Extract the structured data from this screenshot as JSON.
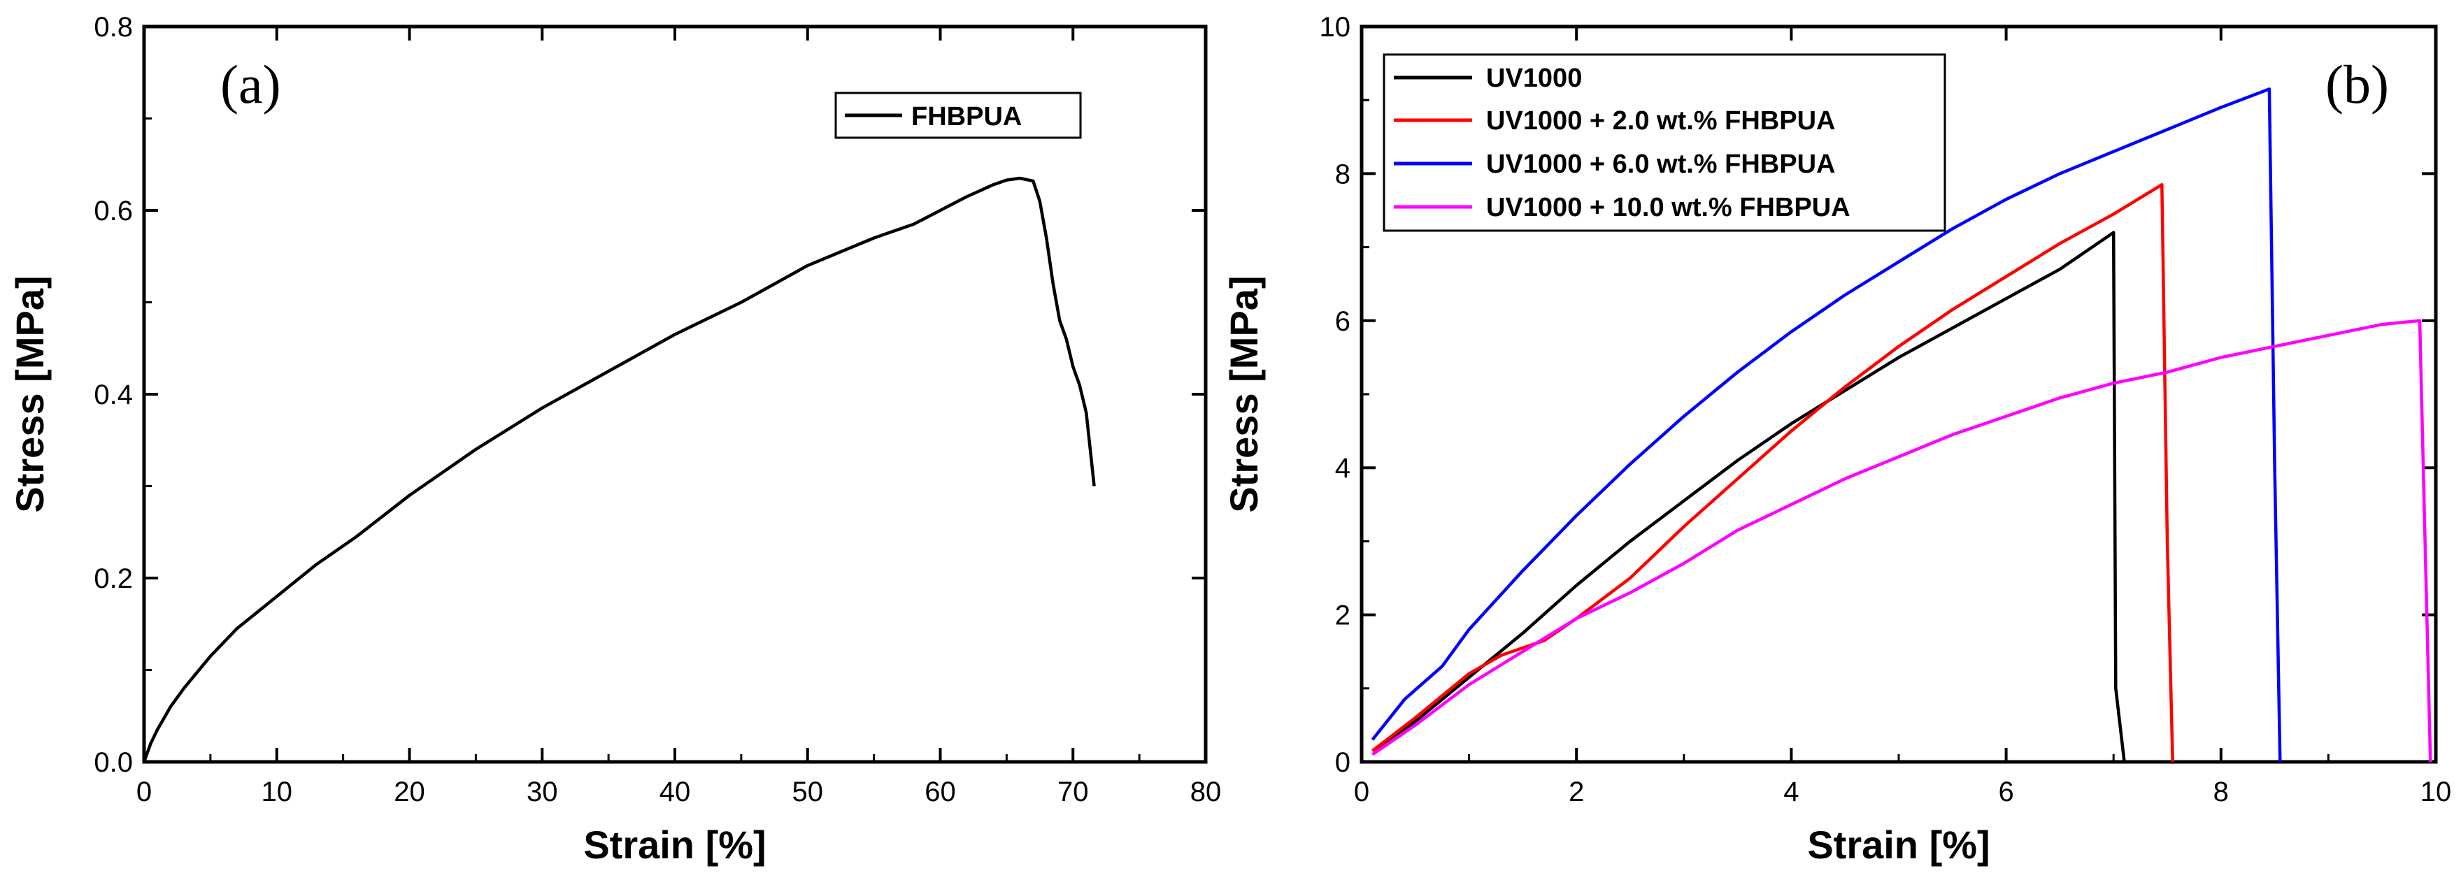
{
  "chart_data": [
    {
      "type": "line",
      "panel_label": "(a)",
      "xlabel": "Strain  [%]",
      "ylabel": "Stress  [MPa]",
      "xlim": [
        0,
        80
      ],
      "ylim": [
        0,
        0.8
      ],
      "xticks": [
        0,
        10,
        20,
        30,
        40,
        50,
        60,
        70,
        80
      ],
      "yticks": [
        0.0,
        0.2,
        0.4,
        0.6,
        0.8
      ],
      "ytick_labels": [
        "0.0",
        "0.2",
        "0.4",
        "0.6",
        "0.8"
      ],
      "legend_position": "top-right",
      "series": [
        {
          "name": "FHBPUA",
          "color": "#000000",
          "x": [
            0,
            0.5,
            1,
            2,
            3,
            5,
            7,
            10,
            13,
            16,
            20,
            25,
            30,
            35,
            40,
            45,
            50,
            55,
            58,
            60,
            62,
            64,
            65,
            66,
            67,
            67.5,
            68,
            68.5,
            69,
            69.5,
            70,
            70.5,
            71,
            71.3,
            71.6
          ],
          "y": [
            0,
            0.02,
            0.035,
            0.06,
            0.08,
            0.115,
            0.145,
            0.18,
            0.215,
            0.245,
            0.29,
            0.34,
            0.385,
            0.425,
            0.465,
            0.5,
            0.54,
            0.57,
            0.585,
            0.6,
            0.615,
            0.628,
            0.633,
            0.635,
            0.632,
            0.61,
            0.57,
            0.52,
            0.48,
            0.46,
            0.43,
            0.41,
            0.38,
            0.34,
            0.3
          ]
        }
      ]
    },
    {
      "type": "line",
      "panel_label": "(b)",
      "xlabel": "Strain  [%]",
      "ylabel": "Stress  [MPa]",
      "xlim": [
        0,
        10
      ],
      "ylim": [
        0,
        10
      ],
      "xticks": [
        0,
        2,
        4,
        6,
        8,
        10
      ],
      "yticks": [
        0,
        2,
        4,
        6,
        8,
        10
      ],
      "ytick_labels": [
        "0",
        "2",
        "4",
        "6",
        "8",
        "10"
      ],
      "legend_position": "top-left",
      "series": [
        {
          "name": "UV1000",
          "color": "#000000",
          "x": [
            0.1,
            0.5,
            1,
            1.5,
            2,
            2.5,
            3,
            3.5,
            4,
            4.5,
            5,
            5.5,
            6,
            6.5,
            7.0,
            7.02,
            7.1
          ],
          "y": [
            0.15,
            0.55,
            1.15,
            1.75,
            2.4,
            3.0,
            3.55,
            4.1,
            4.6,
            5.05,
            5.5,
            5.9,
            6.3,
            6.7,
            7.2,
            1.0,
            0
          ]
        },
        {
          "name": "UV1000 + 2.0 wt.% FHBPUA",
          "color": "#ff0000",
          "x": [
            0.1,
            0.5,
            1,
            1.3,
            1.7,
            2,
            2.5,
            3,
            3.5,
            4,
            4.5,
            5,
            5.5,
            6,
            6.5,
            7,
            7.45,
            7.5,
            7.55
          ],
          "y": [
            0.15,
            0.6,
            1.2,
            1.45,
            1.65,
            1.95,
            2.5,
            3.2,
            3.85,
            4.5,
            5.1,
            5.65,
            6.15,
            6.6,
            7.05,
            7.45,
            7.85,
            3.0,
            0
          ]
        },
        {
          "name": "UV1000 + 6.0 wt.% FHBPUA",
          "color": "#0000ff",
          "x": [
            0.1,
            0.4,
            0.75,
            1,
            1.5,
            2,
            2.5,
            3,
            3.5,
            4,
            4.5,
            5,
            5.5,
            6,
            6.5,
            7,
            7.5,
            8,
            8.45,
            8.5,
            8.55
          ],
          "y": [
            0.3,
            0.85,
            1.3,
            1.8,
            2.6,
            3.35,
            4.05,
            4.7,
            5.3,
            5.85,
            6.35,
            6.8,
            7.25,
            7.65,
            8.0,
            8.3,
            8.6,
            8.9,
            9.15,
            4.0,
            0
          ]
        },
        {
          "name": "UV1000 + 10.0 wt.% FHBPUA",
          "color": "#ff00ff",
          "x": [
            0.1,
            0.5,
            1,
            1.5,
            2,
            2.5,
            3,
            3.5,
            4,
            4.5,
            5,
            5.5,
            6,
            6.5,
            7,
            7.5,
            8,
            8.5,
            9,
            9.5,
            9.85,
            9.9,
            9.95
          ],
          "y": [
            0.1,
            0.5,
            1.05,
            1.5,
            1.95,
            2.3,
            2.7,
            3.15,
            3.5,
            3.85,
            4.15,
            4.45,
            4.7,
            4.95,
            5.15,
            5.3,
            5.5,
            5.65,
            5.8,
            5.95,
            6.0,
            3.0,
            0
          ]
        }
      ]
    }
  ]
}
